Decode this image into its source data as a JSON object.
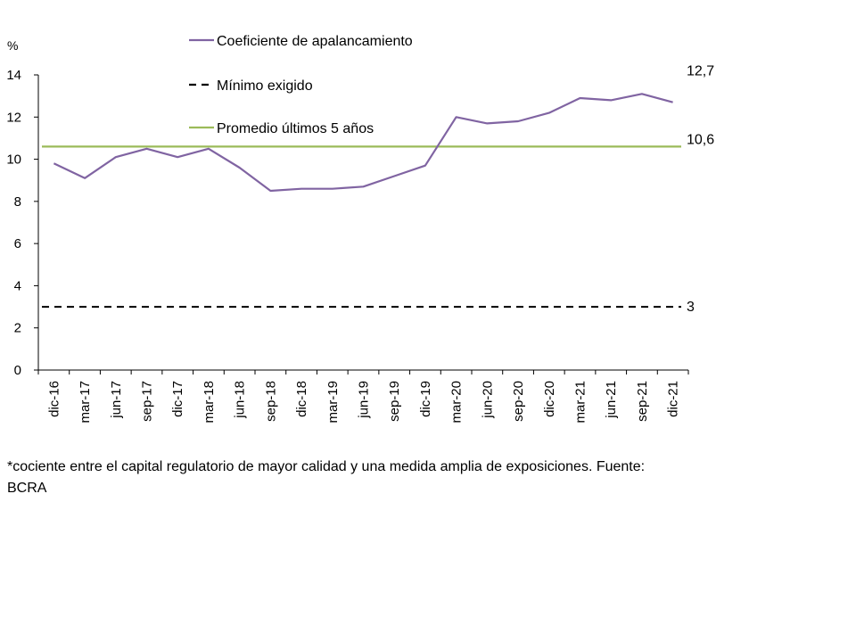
{
  "chart_data": {
    "type": "line",
    "ylabel": "%",
    "ylim": [
      0,
      14
    ],
    "yticks": [
      0,
      2,
      4,
      6,
      8,
      10,
      12,
      14
    ],
    "categories": [
      "dic-16",
      "mar-17",
      "jun-17",
      "sep-17",
      "dic-17",
      "mar-18",
      "jun-18",
      "sep-18",
      "dic-18",
      "mar-19",
      "jun-19",
      "sep-19",
      "dic-19",
      "mar-20",
      "jun-20",
      "sep-20",
      "dic-20",
      "mar-21",
      "jun-21",
      "sep-21",
      "dic-21"
    ],
    "series": [
      {
        "name": "Coeficiente de apalancamiento",
        "color": "#8064a2",
        "style": "solid",
        "values": [
          9.8,
          9.1,
          10.1,
          10.5,
          10.1,
          10.5,
          9.6,
          8.5,
          8.6,
          8.6,
          8.7,
          9.2,
          9.7,
          12.0,
          11.7,
          11.8,
          12.2,
          12.9,
          12.8,
          13.1,
          12.7
        ]
      },
      {
        "name": "Mínimo exigido",
        "color": "#000000",
        "style": "dashed",
        "values": [
          3,
          3,
          3,
          3,
          3,
          3,
          3,
          3,
          3,
          3,
          3,
          3,
          3,
          3,
          3,
          3,
          3,
          3,
          3,
          3,
          3
        ]
      },
      {
        "name": "Promedio últimos 5 años",
        "color": "#9bbb59",
        "style": "solid",
        "values": [
          10.6,
          10.6,
          10.6,
          10.6,
          10.6,
          10.6,
          10.6,
          10.6,
          10.6,
          10.6,
          10.6,
          10.6,
          10.6,
          10.6,
          10.6,
          10.6,
          10.6,
          10.6,
          10.6,
          10.6,
          10.6
        ]
      }
    ],
    "end_labels": [
      "12,7",
      "10,6",
      "3"
    ],
    "legend_position": "top-center",
    "grid": false
  },
  "footnote": "*cociente entre el capital regulatorio de mayor calidad y una medida amplia de exposiciones. Fuente: BCRA"
}
